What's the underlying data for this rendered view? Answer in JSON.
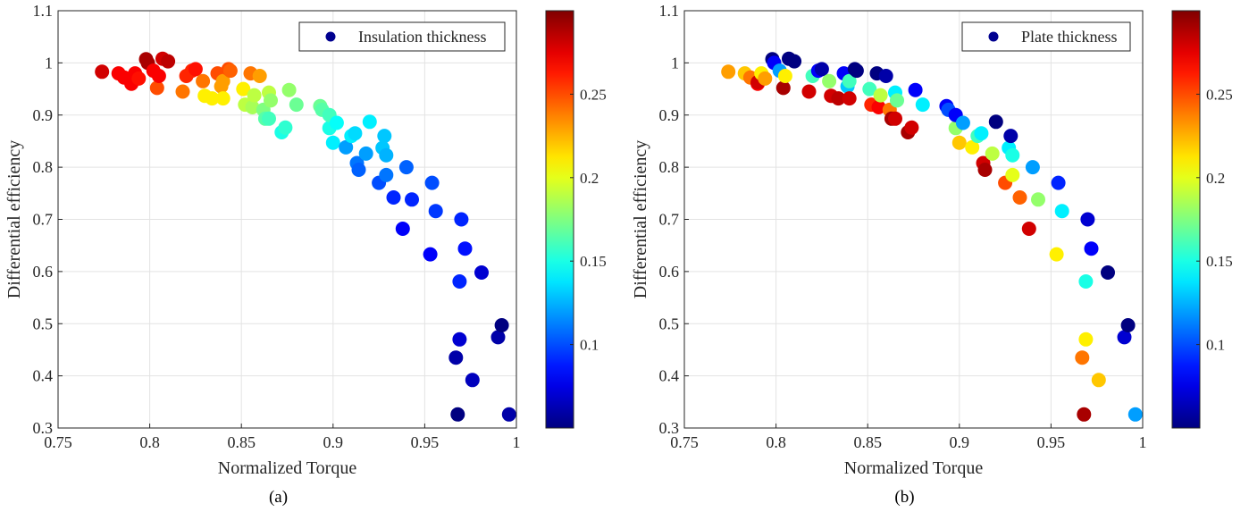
{
  "chart_data": [
    {
      "type": "scatter",
      "panel_label": "(a)",
      "xlabel": "Normalized Torque",
      "ylabel": "Differential efficiency",
      "xlim": [
        0.75,
        1.0
      ],
      "ylim": [
        0.3,
        1.1
      ],
      "xticks": [
        "0.75",
        "0.8",
        "0.85",
        "0.9",
        "0.95",
        "1"
      ],
      "yticks": [
        "0.3",
        "0.4",
        "0.5",
        "0.6",
        "0.7",
        "0.8",
        "0.9",
        "1",
        "1.1"
      ],
      "legend": {
        "label": "Insulation thickness",
        "position": "top-right"
      },
      "colorbar": {
        "colormap": "jet",
        "range": [
          0.05,
          0.3
        ],
        "ticks": [
          "0.1",
          "0.15",
          "0.2",
          "0.25"
        ]
      },
      "grid": true,
      "points": [
        [
          0.774,
          0.983,
          0.28
        ],
        [
          0.783,
          0.98,
          0.27
        ],
        [
          0.786,
          0.972,
          0.27
        ],
        [
          0.79,
          0.96,
          0.27
        ],
        [
          0.792,
          0.98,
          0.27
        ],
        [
          0.794,
          0.97,
          0.265
        ],
        [
          0.798,
          1.007,
          0.29
        ],
        [
          0.799,
          1.0,
          0.29
        ],
        [
          0.802,
          0.985,
          0.27
        ],
        [
          0.804,
          0.952,
          0.25
        ],
        [
          0.805,
          0.975,
          0.27
        ],
        [
          0.807,
          1.008,
          0.28
        ],
        [
          0.81,
          1.003,
          0.285
        ],
        [
          0.818,
          0.945,
          0.24
        ],
        [
          0.82,
          0.975,
          0.26
        ],
        [
          0.823,
          0.985,
          0.26
        ],
        [
          0.825,
          0.988,
          0.265
        ],
        [
          0.829,
          0.965,
          0.24
        ],
        [
          0.83,
          0.937,
          0.21
        ],
        [
          0.834,
          0.932,
          0.21
        ],
        [
          0.837,
          0.98,
          0.25
        ],
        [
          0.839,
          0.955,
          0.23
        ],
        [
          0.84,
          0.965,
          0.23
        ],
        [
          0.84,
          0.932,
          0.21
        ],
        [
          0.843,
          0.988,
          0.25
        ],
        [
          0.844,
          0.985,
          0.245
        ],
        [
          0.851,
          0.95,
          0.21
        ],
        [
          0.852,
          0.92,
          0.19
        ],
        [
          0.855,
          0.98,
          0.24
        ],
        [
          0.856,
          0.915,
          0.185
        ],
        [
          0.857,
          0.938,
          0.19
        ],
        [
          0.86,
          0.975,
          0.23
        ],
        [
          0.862,
          0.91,
          0.175
        ],
        [
          0.863,
          0.893,
          0.165
        ],
        [
          0.865,
          0.943,
          0.19
        ],
        [
          0.866,
          0.928,
          0.18
        ],
        [
          0.865,
          0.893,
          0.16
        ],
        [
          0.872,
          0.867,
          0.15
        ],
        [
          0.874,
          0.876,
          0.155
        ],
        [
          0.876,
          0.948,
          0.18
        ],
        [
          0.88,
          0.92,
          0.17
        ],
        [
          0.893,
          0.917,
          0.17
        ],
        [
          0.894,
          0.91,
          0.165
        ],
        [
          0.898,
          0.875,
          0.15
        ],
        [
          0.898,
          0.9,
          0.16
        ],
        [
          0.9,
          0.847,
          0.14
        ],
        [
          0.902,
          0.885,
          0.145
        ],
        [
          0.907,
          0.838,
          0.12
        ],
        [
          0.91,
          0.86,
          0.14
        ],
        [
          0.912,
          0.865,
          0.135
        ],
        [
          0.913,
          0.808,
          0.11
        ],
        [
          0.914,
          0.795,
          0.105
        ],
        [
          0.918,
          0.826,
          0.12
        ],
        [
          0.92,
          0.887,
          0.14
        ],
        [
          0.925,
          0.77,
          0.1
        ],
        [
          0.927,
          0.837,
          0.13
        ],
        [
          0.928,
          0.86,
          0.13
        ],
        [
          0.929,
          0.823,
          0.125
        ],
        [
          0.929,
          0.785,
          0.11
        ],
        [
          0.933,
          0.742,
          0.09
        ],
        [
          0.938,
          0.682,
          0.08
        ],
        [
          0.94,
          0.8,
          0.105
        ],
        [
          0.943,
          0.738,
          0.09
        ],
        [
          0.954,
          0.77,
          0.1
        ],
        [
          0.953,
          0.633,
          0.08
        ],
        [
          0.956,
          0.716,
          0.095
        ],
        [
          0.967,
          0.435,
          0.06
        ],
        [
          0.968,
          0.326,
          0.05
        ],
        [
          0.969,
          0.581,
          0.09
        ],
        [
          0.969,
          0.47,
          0.07
        ],
        [
          0.97,
          0.7,
          0.09
        ],
        [
          0.972,
          0.644,
          0.085
        ],
        [
          0.976,
          0.392,
          0.065
        ],
        [
          0.981,
          0.598,
          0.07
        ],
        [
          0.99,
          0.474,
          0.06
        ],
        [
          0.992,
          0.497,
          0.05
        ],
        [
          0.996,
          0.326,
          0.06
        ]
      ]
    },
    {
      "type": "scatter",
      "panel_label": "(b)",
      "xlabel": "Normalized Torque",
      "ylabel": "Differential efficiency",
      "xlim": [
        0.75,
        1.0
      ],
      "ylim": [
        0.3,
        1.1
      ],
      "xticks": [
        "0.75",
        "0.8",
        "0.85",
        "0.9",
        "0.95",
        "1"
      ],
      "yticks": [
        "0.3",
        "0.4",
        "0.5",
        "0.6",
        "0.7",
        "0.8",
        "0.9",
        "1",
        "1.1"
      ],
      "legend": {
        "label": "Plate thickness",
        "position": "top-right"
      },
      "colorbar": {
        "colormap": "jet",
        "range": [
          0.05,
          0.3
        ],
        "ticks": [
          "0.1",
          "0.15",
          "0.2",
          "0.25"
        ]
      },
      "grid": true,
      "points": [
        [
          0.774,
          0.983,
          0.23
        ],
        [
          0.783,
          0.98,
          0.22
        ],
        [
          0.786,
          0.972,
          0.24
        ],
        [
          0.79,
          0.96,
          0.27
        ],
        [
          0.79,
          0.963,
          0.28
        ],
        [
          0.792,
          0.98,
          0.21
        ],
        [
          0.794,
          0.97,
          0.23
        ],
        [
          0.798,
          1.007,
          0.05
        ],
        [
          0.799,
          1.0,
          0.08
        ],
        [
          0.802,
          0.985,
          0.12
        ],
        [
          0.804,
          0.952,
          0.29
        ],
        [
          0.805,
          0.975,
          0.21
        ],
        [
          0.807,
          1.008,
          0.05
        ],
        [
          0.81,
          1.003,
          0.05
        ],
        [
          0.818,
          0.945,
          0.28
        ],
        [
          0.82,
          0.975,
          0.16
        ],
        [
          0.823,
          0.985,
          0.08
        ],
        [
          0.825,
          0.988,
          0.06
        ],
        [
          0.829,
          0.965,
          0.18
        ],
        [
          0.83,
          0.937,
          0.28
        ],
        [
          0.834,
          0.932,
          0.285
        ],
        [
          0.837,
          0.98,
          0.08
        ],
        [
          0.839,
          0.955,
          0.13
        ],
        [
          0.84,
          0.965,
          0.16
        ],
        [
          0.84,
          0.932,
          0.28
        ],
        [
          0.843,
          0.988,
          0.05
        ],
        [
          0.844,
          0.985,
          0.05
        ],
        [
          0.851,
          0.95,
          0.16
        ],
        [
          0.852,
          0.92,
          0.26
        ],
        [
          0.855,
          0.98,
          0.05
        ],
        [
          0.856,
          0.915,
          0.27
        ],
        [
          0.857,
          0.938,
          0.19
        ],
        [
          0.86,
          0.975,
          0.06
        ],
        [
          0.862,
          0.91,
          0.24
        ],
        [
          0.863,
          0.893,
          0.29
        ],
        [
          0.865,
          0.943,
          0.14
        ],
        [
          0.866,
          0.928,
          0.17
        ],
        [
          0.865,
          0.893,
          0.28
        ],
        [
          0.872,
          0.867,
          0.29
        ],
        [
          0.874,
          0.876,
          0.28
        ],
        [
          0.876,
          0.948,
          0.08
        ],
        [
          0.88,
          0.92,
          0.14
        ],
        [
          0.893,
          0.917,
          0.08
        ],
        [
          0.894,
          0.91,
          0.1
        ],
        [
          0.898,
          0.875,
          0.18
        ],
        [
          0.898,
          0.9,
          0.08
        ],
        [
          0.9,
          0.847,
          0.22
        ],
        [
          0.902,
          0.885,
          0.12
        ],
        [
          0.907,
          0.838,
          0.21
        ],
        [
          0.91,
          0.86,
          0.16
        ],
        [
          0.912,
          0.865,
          0.14
        ],
        [
          0.913,
          0.808,
          0.28
        ],
        [
          0.914,
          0.795,
          0.29
        ],
        [
          0.918,
          0.826,
          0.19
        ],
        [
          0.92,
          0.887,
          0.05
        ],
        [
          0.925,
          0.77,
          0.25
        ],
        [
          0.927,
          0.837,
          0.14
        ],
        [
          0.928,
          0.86,
          0.06
        ],
        [
          0.929,
          0.823,
          0.15
        ],
        [
          0.929,
          0.785,
          0.2
        ],
        [
          0.933,
          0.742,
          0.245
        ],
        [
          0.938,
          0.682,
          0.28
        ],
        [
          0.94,
          0.8,
          0.12
        ],
        [
          0.943,
          0.738,
          0.18
        ],
        [
          0.954,
          0.77,
          0.09
        ],
        [
          0.953,
          0.633,
          0.21
        ],
        [
          0.956,
          0.716,
          0.14
        ],
        [
          0.967,
          0.435,
          0.24
        ],
        [
          0.968,
          0.326,
          0.29
        ],
        [
          0.969,
          0.581,
          0.15
        ],
        [
          0.969,
          0.47,
          0.21
        ],
        [
          0.97,
          0.7,
          0.07
        ],
        [
          0.972,
          0.644,
          0.08
        ],
        [
          0.976,
          0.392,
          0.22
        ],
        [
          0.981,
          0.598,
          0.05
        ],
        [
          0.99,
          0.474,
          0.07
        ],
        [
          0.992,
          0.497,
          0.05
        ],
        [
          0.996,
          0.326,
          0.12
        ]
      ]
    }
  ]
}
